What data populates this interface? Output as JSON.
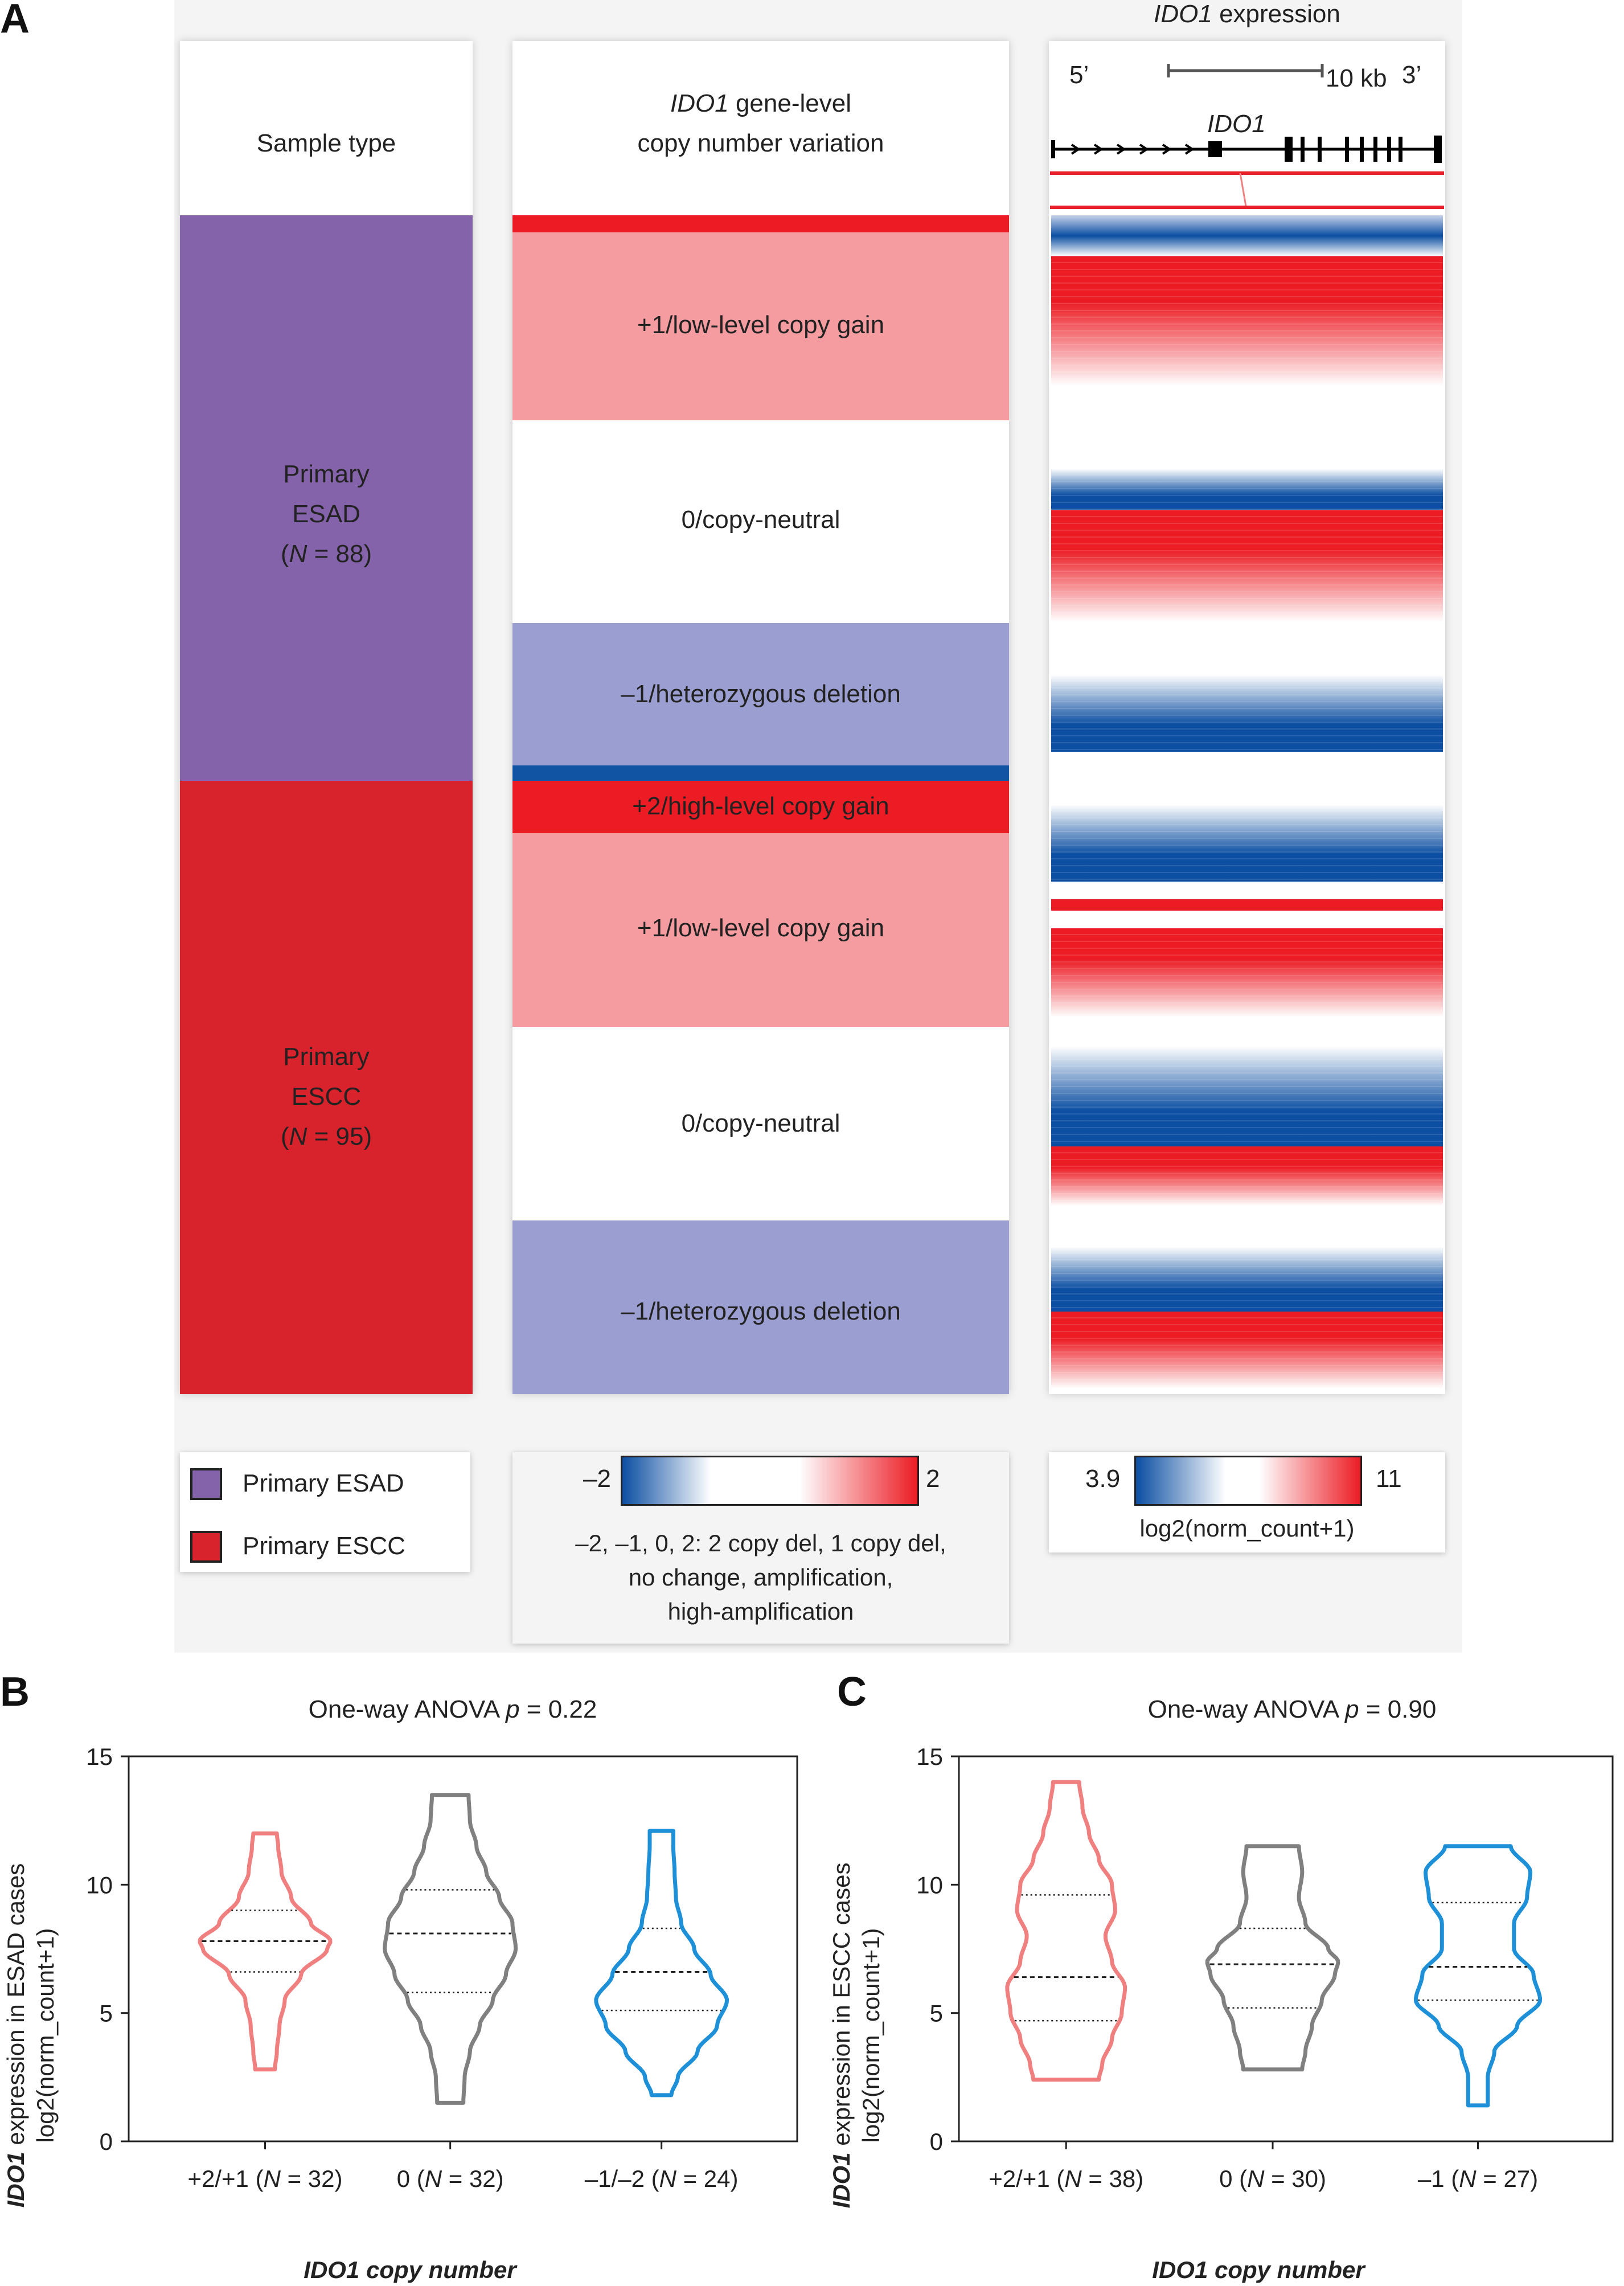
{
  "panels": {
    "a": "A",
    "b": "B",
    "c": "C"
  },
  "panel_a": {
    "col1_header": "Sample type",
    "col2_header_gene": "IDO1",
    "col2_header_rest": " gene-level",
    "col2_header_line2": "copy number variation",
    "col3_title_gene": "IDO1",
    "col3_title_rest": " expression",
    "track_5prime": "5’",
    "track_3prime": "3’",
    "track_scale": "10 kb",
    "track_gene": "IDO1",
    "sample_esad": {
      "line1": "Primary",
      "line2": "ESAD",
      "n_var": "N",
      "n_text": " = 88"
    },
    "sample_escc": {
      "line1": "Primary",
      "line2": "ESCC",
      "n_var": "N",
      "n_text": " = 95"
    },
    "cnv_labels": {
      "esad_gain": "+1/low-level copy gain",
      "esad_neutral": "0/copy-neutral",
      "esad_del": "–1/heterozygous deletion",
      "escc_high": "+2/high-level copy gain",
      "escc_gain": "+1/low-level copy gain",
      "escc_neutral": "0/copy-neutral",
      "escc_del": "–1/heterozygous deletion"
    },
    "legend_sample": [
      {
        "label": "Primary ESAD",
        "color": "#8563ab"
      },
      {
        "label": "Primary ESCC",
        "color": "#d8222c"
      }
    ],
    "legend_cnv": {
      "min": "–2",
      "max": "2",
      "line1": "–2, –1, 0, 2: 2 copy del, 1 copy del,",
      "line2": "no change, amplification,",
      "line3": "high-amplification"
    },
    "legend_expr": {
      "min": "3.9",
      "max": "11",
      "label": "log2(norm_count+1)"
    },
    "colors": {
      "esad": "#8563ab",
      "escc": "#d8222c",
      "cnv_high": "#ec1c24",
      "cnv_low": "#f49ca0",
      "cnv_neutral": "#ffffff",
      "cnv_del": "#9b9ed0",
      "cnv_del2": "#1254a4",
      "expr_low": "#0b4ea2",
      "expr_high": "#ec1c24"
    }
  },
  "panel_b": {
    "title_prefix": "One-way ANOVA ",
    "title_p": "p",
    "title_value": " = 0.22",
    "ylabel_gene": "IDO1",
    "ylabel_rest": " expression in ESAD cases",
    "ylabel_line2": "log2(norm_count+1)",
    "xlabel_gene": "IDO1",
    "xlabel_rest": " copy number",
    "categories": [
      {
        "pre": "+2/+1 (",
        "n": "N",
        "post": " = 32)"
      },
      {
        "pre": "0 (",
        "n": "N",
        "post": " = 32)"
      },
      {
        "pre": "–1/–2 (",
        "n": "N",
        "post": " = 24)"
      }
    ]
  },
  "panel_c": {
    "title_prefix": "One-way ANOVA ",
    "title_p": "p",
    "title_value": " = 0.90",
    "ylabel_gene": "IDO1",
    "ylabel_rest": " expression in ESCC cases",
    "ylabel_line2": "log2(norm_count+1)",
    "xlabel_gene": "IDO1",
    "xlabel_rest": " copy number",
    "categories": [
      {
        "pre": "+2/+1 (",
        "n": "N",
        "post": " = 38)"
      },
      {
        "pre": "0 (",
        "n": "N",
        "post": " = 30)"
      },
      {
        "pre": "–1 (",
        "n": "N",
        "post": " = 27)"
      }
    ]
  },
  "chart_data": [
    {
      "type": "violin",
      "panel": "B",
      "title": "One-way ANOVA p = 0.22",
      "ylabel": "IDO1 expression in ESAD cases log2(norm_count+1)",
      "xlabel": "IDO1 copy number",
      "ylim": [
        0,
        15
      ],
      "yticks": [
        0,
        5,
        10,
        15
      ],
      "series": [
        {
          "name": "+2/+1 (N = 32)",
          "color": "#f08080",
          "min": 2.8,
          "max": 12.0,
          "q1": 6.6,
          "median": 7.8,
          "q3": 9.0,
          "profile": [
            [
              2.8,
              0.15
            ],
            [
              3.5,
              0.18
            ],
            [
              4.5,
              0.22
            ],
            [
              5.5,
              0.3
            ],
            [
              6.5,
              0.55
            ],
            [
              7.5,
              0.95
            ],
            [
              7.8,
              1.0
            ],
            [
              8.5,
              0.7
            ],
            [
              9.5,
              0.4
            ],
            [
              10.5,
              0.25
            ],
            [
              11.5,
              0.2
            ],
            [
              12.0,
              0.18
            ]
          ]
        },
        {
          "name": "0 (N = 32)",
          "color": "#808080",
          "min": 1.5,
          "max": 13.5,
          "q1": 5.8,
          "median": 8.1,
          "q3": 9.8,
          "profile": [
            [
              1.5,
              0.2
            ],
            [
              2.5,
              0.22
            ],
            [
              3.5,
              0.3
            ],
            [
              4.5,
              0.45
            ],
            [
              5.5,
              0.65
            ],
            [
              6.5,
              0.85
            ],
            [
              7.5,
              1.0
            ],
            [
              8.5,
              0.95
            ],
            [
              9.5,
              0.75
            ],
            [
              10.5,
              0.55
            ],
            [
              11.5,
              0.4
            ],
            [
              12.5,
              0.3
            ],
            [
              13.5,
              0.28
            ]
          ]
        },
        {
          "name": "–1/–2 (N = 24)",
          "color": "#1e90d8",
          "min": 1.8,
          "max": 12.1,
          "q1": 5.1,
          "median": 6.6,
          "q3": 8.3,
          "profile": [
            [
              1.8,
              0.15
            ],
            [
              2.5,
              0.25
            ],
            [
              3.5,
              0.55
            ],
            [
              4.5,
              0.85
            ],
            [
              5.5,
              1.0
            ],
            [
              6.5,
              0.75
            ],
            [
              7.5,
              0.5
            ],
            [
              8.5,
              0.3
            ],
            [
              9.5,
              0.22
            ],
            [
              10.5,
              0.2
            ],
            [
              11.5,
              0.18
            ],
            [
              12.1,
              0.18
            ]
          ]
        }
      ]
    },
    {
      "type": "violin",
      "panel": "C",
      "title": "One-way ANOVA p = 0.90",
      "ylabel": "IDO1 expression in ESCC cases log2(norm_count+1)",
      "xlabel": "IDO1 copy number",
      "ylim": [
        0,
        15
      ],
      "yticks": [
        0,
        5,
        10,
        15
      ],
      "series": [
        {
          "name": "+2/+1 (N = 38)",
          "color": "#f08080",
          "min": 2.4,
          "max": 14.0,
          "q1": 4.7,
          "median": 6.4,
          "q3": 9.6,
          "profile": [
            [
              2.4,
              0.5
            ],
            [
              3.0,
              0.55
            ],
            [
              4.0,
              0.7
            ],
            [
              5.0,
              0.85
            ],
            [
              6.0,
              0.9
            ],
            [
              7.0,
              0.7
            ],
            [
              8.0,
              0.6
            ],
            [
              9.0,
              0.75
            ],
            [
              10.0,
              0.7
            ],
            [
              11.0,
              0.5
            ],
            [
              12.0,
              0.35
            ],
            [
              13.0,
              0.25
            ],
            [
              14.0,
              0.2
            ]
          ]
        },
        {
          "name": "0 (N = 30)",
          "color": "#808080",
          "min": 2.8,
          "max": 11.5,
          "q1": 5.2,
          "median": 6.9,
          "q3": 8.3,
          "profile": [
            [
              2.8,
              0.45
            ],
            [
              3.5,
              0.5
            ],
            [
              4.5,
              0.6
            ],
            [
              5.5,
              0.75
            ],
            [
              6.5,
              0.95
            ],
            [
              7.0,
              1.0
            ],
            [
              7.5,
              0.85
            ],
            [
              8.5,
              0.5
            ],
            [
              9.5,
              0.4
            ],
            [
              10.5,
              0.45
            ],
            [
              11.5,
              0.4
            ]
          ]
        },
        {
          "name": "–1 (N = 27)",
          "color": "#1e90d8",
          "min": 1.4,
          "max": 11.5,
          "q1": 5.5,
          "median": 6.8,
          "q3": 9.3,
          "profile": [
            [
              1.4,
              0.15
            ],
            [
              2.5,
              0.15
            ],
            [
              3.5,
              0.25
            ],
            [
              4.5,
              0.6
            ],
            [
              5.5,
              0.95
            ],
            [
              6.5,
              0.85
            ],
            [
              7.5,
              0.55
            ],
            [
              8.5,
              0.55
            ],
            [
              9.5,
              0.75
            ],
            [
              10.5,
              0.8
            ],
            [
              11.5,
              0.5
            ]
          ]
        }
      ]
    }
  ]
}
